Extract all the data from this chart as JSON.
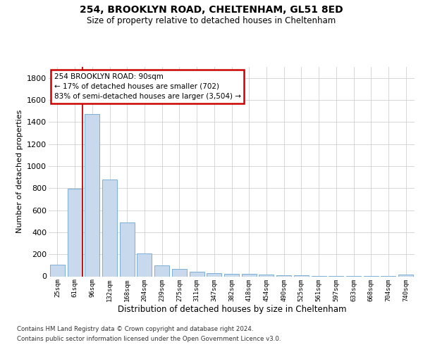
{
  "title_line1": "254, BROOKLYN ROAD, CHELTENHAM, GL51 8ED",
  "title_line2": "Size of property relative to detached houses in Cheltenham",
  "xlabel": "Distribution of detached houses by size in Cheltenham",
  "ylabel": "Number of detached properties",
  "categories": [
    "25sqm",
    "61sqm",
    "96sqm",
    "132sqm",
    "168sqm",
    "204sqm",
    "239sqm",
    "275sqm",
    "311sqm",
    "347sqm",
    "382sqm",
    "418sqm",
    "454sqm",
    "490sqm",
    "525sqm",
    "561sqm",
    "597sqm",
    "633sqm",
    "668sqm",
    "704sqm",
    "740sqm"
  ],
  "values": [
    105,
    795,
    1475,
    875,
    490,
    205,
    100,
    65,
    42,
    30,
    25,
    20,
    17,
    12,
    8,
    5,
    4,
    3,
    2,
    2,
    18
  ],
  "bar_color": "#c9d9ed",
  "bar_edge_color": "#7bafd4",
  "annotation_line1": "254 BROOKLYN ROAD: 90sqm",
  "annotation_line2": "← 17% of detached houses are smaller (702)",
  "annotation_line3": "83% of semi-detached houses are larger (3,504) →",
  "annotation_box_facecolor": "#ffffff",
  "annotation_box_edgecolor": "#cc0000",
  "vline_color": "#cc0000",
  "vline_x": 1.425,
  "ylim_max": 1900,
  "yticks": [
    0,
    200,
    400,
    600,
    800,
    1000,
    1200,
    1400,
    1600,
    1800
  ],
  "footnote_line1": "Contains HM Land Registry data © Crown copyright and database right 2024.",
  "footnote_line2": "Contains public sector information licensed under the Open Government Licence v3.0.",
  "bg_color": "#ffffff",
  "grid_color": "#d0d0d0"
}
